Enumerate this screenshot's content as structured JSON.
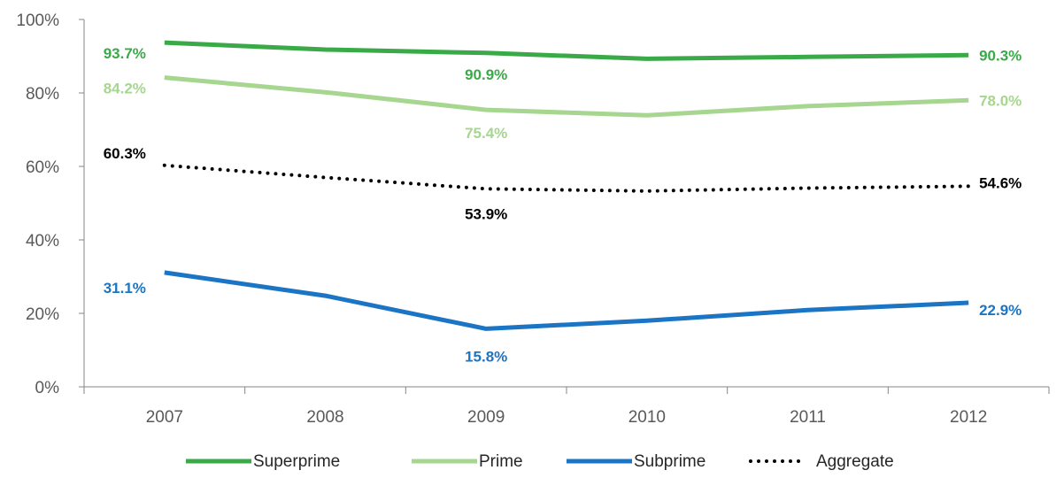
{
  "chart_data": {
    "type": "line",
    "title": "",
    "xlabel": "",
    "ylabel": "",
    "categories": [
      "2007",
      "2008",
      "2009",
      "2010",
      "2011",
      "2012"
    ],
    "ylim": [
      0,
      100
    ],
    "yticks": [
      0,
      20,
      40,
      60,
      80,
      100
    ],
    "ytick_labels": [
      "0%",
      "20%",
      "40%",
      "60%",
      "80%",
      "100%"
    ],
    "grid": false,
    "legend_position": "bottom",
    "series": [
      {
        "name": "Superprime",
        "values": [
          93.7,
          91.8,
          90.9,
          89.3,
          89.8,
          90.3
        ],
        "color": "#3AAA48",
        "style": "solid",
        "labels": [
          {
            "index": 0,
            "text": "93.7%"
          },
          {
            "index": 2,
            "text": "90.9%"
          },
          {
            "index": 5,
            "text": "90.3%"
          }
        ]
      },
      {
        "name": "Prime",
        "values": [
          84.2,
          80.2,
          75.4,
          73.9,
          76.4,
          78.0
        ],
        "color": "#A6D68F",
        "style": "solid",
        "labels": [
          {
            "index": 0,
            "text": "84.2%"
          },
          {
            "index": 2,
            "text": "75.4%"
          },
          {
            "index": 5,
            "text": "78.0%"
          }
        ]
      },
      {
        "name": "Subprime",
        "values": [
          31.1,
          24.8,
          15.8,
          18.0,
          20.9,
          22.9
        ],
        "color": "#1B75C4",
        "style": "solid",
        "labels": [
          {
            "index": 0,
            "text": "31.1%"
          },
          {
            "index": 2,
            "text": "15.8%"
          },
          {
            "index": 5,
            "text": "22.9%"
          }
        ]
      },
      {
        "name": "Aggregate",
        "values": [
          60.3,
          57.0,
          53.9,
          53.3,
          54.1,
          54.6
        ],
        "color": "#000000",
        "style": "dotted",
        "labels": [
          {
            "index": 0,
            "text": "60.3%"
          },
          {
            "index": 2,
            "text": "53.9%"
          },
          {
            "index": 5,
            "text": "54.6%"
          }
        ]
      }
    ]
  }
}
